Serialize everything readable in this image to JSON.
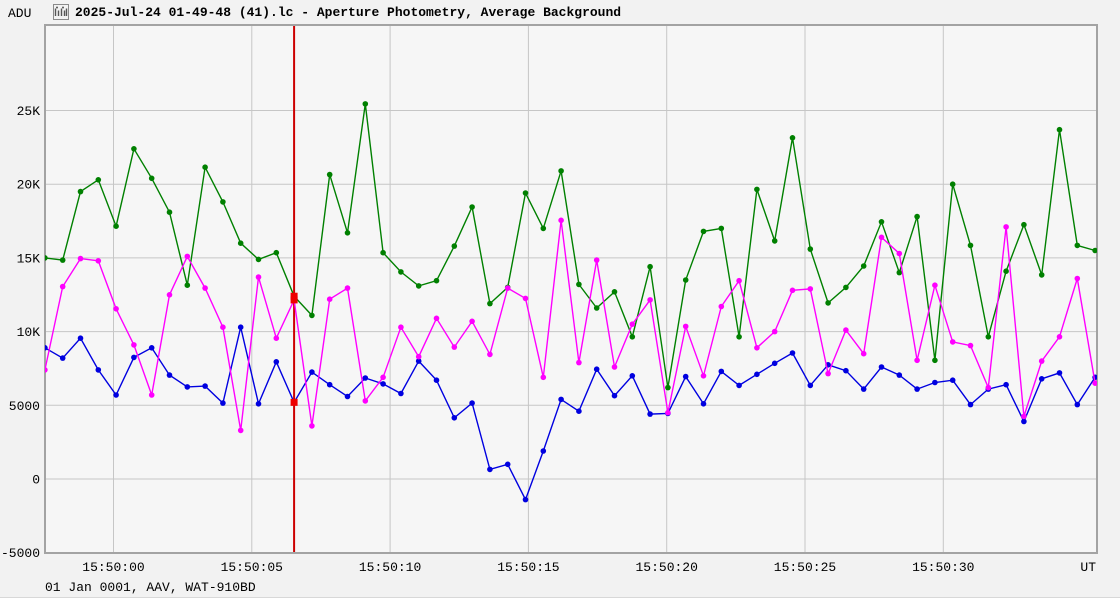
{
  "window": {
    "yaxis_unit": "ADU",
    "title": "2025-Jul-24 01-49-48 (41).lc - Aperture Photometry, Average Background",
    "status_line": "01 Jan 0001, AAV, WAT-910BD"
  },
  "chart_data": {
    "type": "line",
    "title": "2025-Jul-24 01-49-48 (41).lc - Aperture Photometry, Average Background",
    "ylabel": "ADU",
    "xlabel": "UT",
    "grid": true,
    "legend": "none",
    "x_axis": {
      "unit_label": "UT",
      "tick_seconds": [
        0,
        5,
        10,
        15,
        20,
        25,
        30
      ],
      "tick_labels": [
        "15:50:00",
        "15:50:05",
        "15:50:10",
        "15:50:15",
        "15:50:20",
        "15:50:25",
        "15:50:30"
      ],
      "start_offset_s": -2.48,
      "step_s": 0.6435
    },
    "y_axis": {
      "unit": "ADU",
      "range": [
        -5000,
        25000
      ],
      "ticks": [
        {
          "v": 25000,
          "label": "25K"
        },
        {
          "v": 20000,
          "label": "20K"
        },
        {
          "v": 15000,
          "label": "15K"
        },
        {
          "v": 10000,
          "label": "10K"
        },
        {
          "v": 5000,
          "label": "5000"
        },
        {
          "v": 0,
          "label": "0"
        },
        {
          "v": -5000,
          "label": "-5000"
        }
      ]
    },
    "series": [
      {
        "name": "target-green",
        "color": "#008000",
        "values": [
          15000,
          14850,
          19500,
          20300,
          17150,
          22400,
          20400,
          18100,
          13150,
          21150,
          18800,
          16000,
          14900,
          15350,
          12400,
          11100,
          20650,
          16700,
          25450,
          15350,
          14050,
          13100,
          13450,
          15800,
          18450,
          11900,
          13000,
          19400,
          17000,
          20900,
          13200,
          11600,
          12700,
          9650,
          14400,
          6200,
          13500,
          16800,
          17000,
          9650,
          19650,
          16150,
          23150,
          15600,
          11950,
          13000,
          14450,
          17450,
          14000,
          17800,
          8050,
          20000,
          15850,
          9650,
          14100,
          17250,
          13850,
          23700,
          15850,
          15500
        ]
      },
      {
        "name": "target-blue",
        "color": "#0000e0",
        "values": [
          8900,
          8200,
          9550,
          7400,
          5700,
          8250,
          8900,
          7050,
          6250,
          6300,
          5150,
          10300,
          5100,
          7950,
          5200,
          7250,
          6400,
          5600,
          6850,
          6450,
          5800,
          8000,
          6700,
          4150,
          5150,
          650,
          1000,
          -1400,
          1900,
          5400,
          4600,
          7450,
          5650,
          7000,
          4400,
          4450,
          6950,
          5100,
          7300,
          6350,
          7100,
          7850,
          8550,
          6350,
          7750,
          7350,
          6100,
          7600,
          7050,
          6100,
          6550,
          6700,
          5050,
          6100,
          6400,
          3900,
          6800,
          7200,
          5050,
          6900
        ]
      },
      {
        "name": "target-magenta",
        "color": "#ff00ff",
        "values": [
          7400,
          13050,
          14950,
          14800,
          11550,
          9100,
          5700,
          12500,
          15100,
          12950,
          10300,
          3300,
          13700,
          9550,
          12150,
          3600,
          12200,
          12950,
          5300,
          6900,
          10300,
          8300,
          10900,
          8950,
          10700,
          8450,
          12950,
          12250,
          6900,
          17550,
          7900,
          14850,
          7600,
          10500,
          12150,
          4500,
          10350,
          7000,
          11700,
          13450,
          8900,
          10000,
          12800,
          12900,
          7150,
          10100,
          8500,
          16400,
          15300,
          8050,
          13150,
          9300,
          9050,
          6200,
          17100,
          4250,
          8000,
          9650,
          13600,
          6500
        ]
      }
    ],
    "selected_frame": {
      "index": 14,
      "line_color": "#cc0000",
      "marker_color": "#ee0000"
    },
    "colors": {
      "plot_bg": "#f6f6f6",
      "grid": "#c6c6c6",
      "border": "#a3a3a3",
      "text": "#000000"
    }
  }
}
